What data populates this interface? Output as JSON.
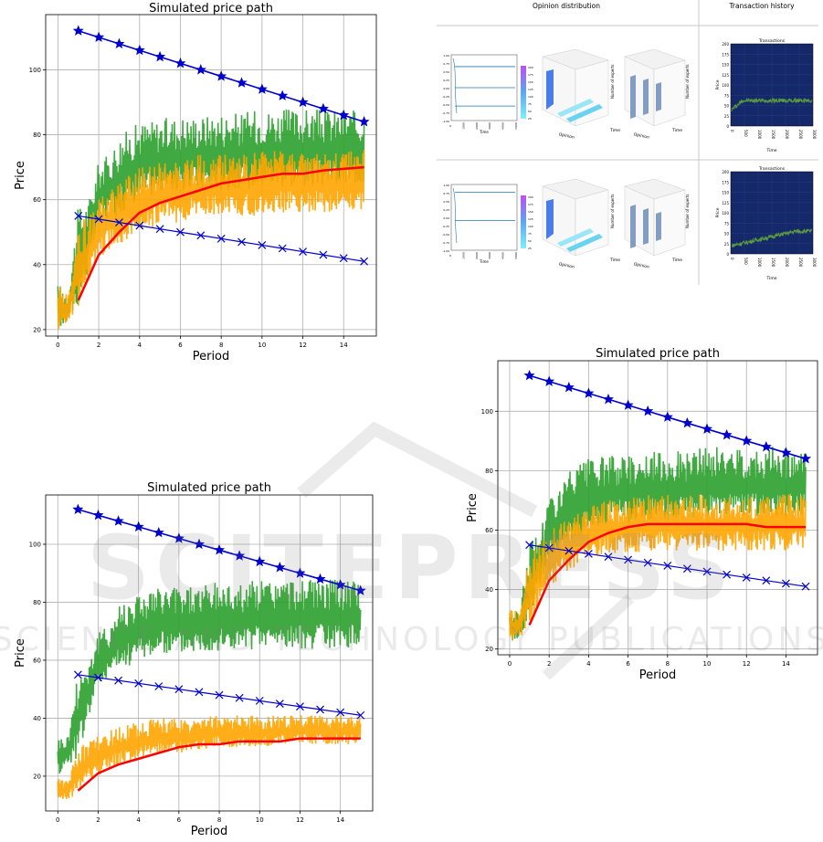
{
  "chart_data": [
    {
      "type": "line",
      "title": "Simulated price path",
      "xlabel": "Period",
      "ylabel": "Price",
      "xlim": [
        -0.6,
        15.6
      ],
      "ylim": [
        18,
        117
      ],
      "xticks": [
        0,
        2,
        4,
        6,
        8,
        10,
        12,
        14
      ],
      "yticks": [
        20,
        40,
        60,
        80,
        100
      ],
      "grid": true,
      "upper_bound": {
        "x": [
          1,
          2,
          3,
          4,
          5,
          6,
          7,
          8,
          9,
          10,
          11,
          12,
          13,
          14,
          15
        ],
        "y": [
          112,
          110,
          108,
          106,
          104,
          102,
          100,
          98,
          96,
          94,
          92,
          90,
          88,
          86,
          84
        ],
        "marker": "star",
        "color": "#0000cc"
      },
      "lower_bound": {
        "x": [
          1,
          2,
          3,
          4,
          5,
          6,
          7,
          8,
          9,
          10,
          11,
          12,
          13,
          14,
          15
        ],
        "y": [
          55,
          54,
          53,
          52,
          51,
          50,
          49,
          48,
          47,
          46,
          45,
          44,
          43,
          42,
          41
        ],
        "marker": "x",
        "color": "#0000cc"
      },
      "ask_band": {
        "color": "#2ca02c",
        "x": [
          0,
          0.5,
          1,
          1.5,
          2,
          2.5,
          3,
          3.5,
          4,
          5,
          6,
          7,
          8,
          9,
          10,
          11,
          12,
          13,
          14,
          15
        ],
        "low": [
          20,
          22,
          28,
          38,
          52,
          54,
          55,
          58,
          60,
          62,
          62,
          63,
          63,
          63,
          64,
          64,
          64,
          64,
          64,
          65
        ],
        "high": [
          34,
          32,
          58,
          60,
          72,
          74,
          80,
          82,
          84,
          85,
          86,
          86,
          87,
          87,
          88,
          88,
          88,
          88,
          88,
          87
        ]
      },
      "bid_band": {
        "color": "#ffa500",
        "x": [
          0,
          0.5,
          1,
          1.5,
          2,
          2.5,
          3,
          3.5,
          4,
          5,
          6,
          7,
          8,
          9,
          10,
          11,
          12,
          13,
          14,
          15
        ],
        "low": [
          20,
          22,
          27,
          34,
          42,
          44,
          46,
          48,
          50,
          52,
          53,
          54,
          55,
          55,
          55,
          56,
          56,
          56,
          57,
          57
        ],
        "high": [
          34,
          32,
          52,
          56,
          60,
          64,
          66,
          68,
          70,
          72,
          73,
          74,
          74,
          74,
          75,
          75,
          75,
          75,
          75,
          76
        ]
      },
      "mean_price": {
        "x": [
          1,
          2,
          3,
          4,
          5,
          6,
          7,
          8,
          9,
          10,
          11,
          12,
          13,
          14,
          15
        ],
        "y": [
          29,
          43,
          50,
          56,
          59,
          61,
          63,
          65,
          66,
          67,
          68,
          68,
          69,
          69.5,
          70
        ],
        "color": "#ff0000"
      }
    },
    {
      "type": "line",
      "title": "Simulated price path",
      "xlabel": "Period",
      "ylabel": "Price",
      "xlim": [
        -0.6,
        15.6
      ],
      "ylim": [
        8,
        117
      ],
      "xticks": [
        0,
        2,
        4,
        6,
        8,
        10,
        12,
        14
      ],
      "yticks": [
        20,
        40,
        60,
        80,
        100
      ],
      "grid": true,
      "upper_bound": {
        "x": [
          1,
          2,
          3,
          4,
          5,
          6,
          7,
          8,
          9,
          10,
          11,
          12,
          13,
          14,
          15
        ],
        "y": [
          112,
          110,
          108,
          106,
          104,
          102,
          100,
          98,
          96,
          94,
          92,
          90,
          88,
          86,
          84
        ],
        "marker": "star",
        "color": "#0000cc"
      },
      "lower_bound": {
        "x": [
          1,
          2,
          3,
          4,
          5,
          6,
          7,
          8,
          9,
          10,
          11,
          12,
          13,
          14,
          15
        ],
        "y": [
          55,
          54,
          53,
          52,
          51,
          50,
          49,
          48,
          47,
          46,
          45,
          44,
          43,
          42,
          41
        ],
        "marker": "x",
        "color": "#0000cc"
      },
      "ask_band": {
        "color": "#2ca02c",
        "x": [
          0,
          0.5,
          1,
          1.5,
          2,
          2.5,
          3,
          3.5,
          4,
          5,
          6,
          7,
          8,
          9,
          10,
          11,
          12,
          13,
          14,
          15
        ],
        "low": [
          20,
          24,
          26,
          40,
          50,
          54,
          56,
          58,
          60,
          62,
          62,
          63,
          63,
          63,
          64,
          64,
          64,
          64,
          64,
          65
        ],
        "high": [
          34,
          34,
          58,
          60,
          70,
          72,
          80,
          82,
          84,
          85,
          86,
          86,
          87,
          87,
          88,
          88,
          88,
          88,
          88,
          87
        ]
      },
      "bid_band": {
        "color": "#ffa500",
        "x": [
          0,
          0.5,
          1,
          1.5,
          2,
          2.5,
          3,
          3.5,
          4,
          5,
          6,
          7,
          8,
          9,
          10,
          11,
          12,
          13,
          14,
          15
        ],
        "low": [
          12,
          12,
          14,
          18,
          20,
          22,
          24,
          25,
          26,
          27,
          28,
          29,
          30,
          30,
          30,
          31,
          31,
          31,
          31,
          31
        ],
        "high": [
          20,
          18,
          30,
          32,
          34,
          36,
          37,
          38,
          39,
          40,
          40,
          40,
          41,
          41,
          41,
          41,
          41,
          41,
          41,
          41
        ]
      },
      "mean_price": {
        "x": [
          1,
          2,
          3,
          4,
          5,
          6,
          7,
          8,
          9,
          10,
          11,
          12,
          13,
          14,
          15
        ],
        "y": [
          15,
          21,
          24,
          26,
          28,
          30,
          31,
          31,
          32,
          32,
          32,
          33,
          33,
          33,
          33
        ],
        "color": "#ff0000"
      }
    },
    {
      "type": "line",
      "title": "Simulated price path",
      "xlabel": "Period",
      "ylabel": "Price",
      "xlim": [
        -0.6,
        15.6
      ],
      "ylim": [
        18,
        117
      ],
      "xticks": [
        0,
        2,
        4,
        6,
        8,
        10,
        12,
        14
      ],
      "yticks": [
        20,
        40,
        60,
        80,
        100
      ],
      "grid": true,
      "upper_bound": {
        "x": [
          1,
          2,
          3,
          4,
          5,
          6,
          7,
          8,
          9,
          10,
          11,
          12,
          13,
          14,
          15
        ],
        "y": [
          112,
          110,
          108,
          106,
          104,
          102,
          100,
          98,
          96,
          94,
          92,
          90,
          88,
          86,
          84
        ],
        "marker": "star",
        "color": "#0000cc"
      },
      "lower_bound": {
        "x": [
          1,
          2,
          3,
          4,
          5,
          6,
          7,
          8,
          9,
          10,
          11,
          12,
          13,
          14,
          15
        ],
        "y": [
          55,
          54,
          53,
          52,
          51,
          50,
          49,
          48,
          47,
          46,
          45,
          44,
          43,
          42,
          41
        ],
        "marker": "x",
        "color": "#0000cc"
      },
      "ask_band": {
        "color": "#2ca02c",
        "x": [
          0,
          0.5,
          1,
          1.5,
          2,
          2.5,
          3,
          3.5,
          4,
          5,
          6,
          7,
          8,
          9,
          10,
          11,
          12,
          13,
          14,
          15
        ],
        "low": [
          22,
          24,
          28,
          40,
          50,
          54,
          56,
          58,
          60,
          62,
          62,
          63,
          63,
          63,
          64,
          64,
          64,
          64,
          64,
          65
        ],
        "high": [
          34,
          32,
          58,
          60,
          72,
          74,
          80,
          82,
          84,
          85,
          86,
          86,
          87,
          87,
          88,
          88,
          88,
          88,
          88,
          87
        ]
      },
      "bid_band": {
        "color": "#ffa500",
        "x": [
          0,
          0.5,
          1,
          1.5,
          2,
          2.5,
          3,
          3.5,
          4,
          5,
          6,
          7,
          8,
          9,
          10,
          11,
          12,
          13,
          14,
          15
        ],
        "low": [
          22,
          24,
          26,
          34,
          40,
          44,
          46,
          48,
          50,
          52,
          52,
          53,
          53,
          53,
          53,
          53,
          53,
          53,
          53,
          53
        ],
        "high": [
          34,
          32,
          52,
          56,
          60,
          62,
          64,
          66,
          68,
          70,
          71,
          72,
          72,
          72,
          72,
          72,
          72,
          72,
          72,
          72
        ]
      },
      "mean_price": {
        "x": [
          1,
          2,
          3,
          4,
          5,
          6,
          7,
          8,
          9,
          10,
          11,
          12,
          13,
          14,
          15
        ],
        "y": [
          28,
          43,
          50,
          56,
          59,
          61,
          62,
          62,
          62,
          62,
          62,
          62,
          61,
          61,
          61
        ],
        "color": "#ff0000"
      }
    }
  ],
  "opinion_figure": {
    "col_headers": [
      "Opinion distribution",
      "Transaction history"
    ],
    "rows": [
      {
        "line_yticks": [
          "1.00",
          "0.75",
          "0.50",
          "0.25",
          "0.00",
          "-0.25",
          "-0.50",
          "-0.75",
          "-1.00"
        ],
        "line_xticks": [
          "0",
          "1000",
          "2000",
          "3000",
          "4000",
          "5000"
        ],
        "line_xlabel": "Time",
        "colorbar_ticks": [
          "200",
          "175",
          "150",
          "125",
          "100",
          "75",
          "50",
          "25"
        ],
        "surf_labels": [
          "Opinion",
          "Time",
          "Number of experts"
        ],
        "surf2_labels": [
          "Opinion",
          "Time",
          "Number of experts"
        ],
        "tx_title": "Transactions",
        "tx_ylabel": "Price",
        "tx_xlabel": "Time",
        "tx_yticks": [
          "200",
          "175",
          "150",
          "125",
          "100",
          "75",
          "50",
          "25",
          "0"
        ],
        "tx_xticks": [
          "0",
          "500",
          "1000",
          "1500",
          "2000",
          "2500",
          "3000"
        ]
      },
      {
        "line_yticks": [
          "1.00",
          "0.75",
          "0.50",
          "0.25",
          "0.00",
          "-0.25",
          "-0.50",
          "-0.75",
          "-1.00"
        ],
        "line_xticks": [
          "0",
          "1000",
          "2000",
          "3000",
          "4000",
          "5000"
        ],
        "line_xlabel": "Time",
        "colorbar_ticks": [
          "200",
          "175",
          "150",
          "125",
          "100",
          "75",
          "50",
          "25"
        ],
        "surf_labels": [
          "Opinion",
          "Time",
          "Number of experts"
        ],
        "surf2_labels": [
          "Opinion",
          "Time",
          "Number of experts"
        ],
        "tx_title": "Transactions",
        "tx_ylabel": "Price",
        "tx_xlabel": "Time",
        "tx_yticks": [
          "200",
          "175",
          "150",
          "125",
          "100",
          "75",
          "50",
          "25",
          "0"
        ],
        "tx_xticks": [
          "0",
          "500",
          "1000",
          "1500",
          "2000",
          "2500",
          "3000"
        ]
      }
    ]
  },
  "watermark": {
    "line1": "SCITEPRESS",
    "line2": "SCIENCE AND TECHNOLOGY PUBLICATIONS"
  }
}
